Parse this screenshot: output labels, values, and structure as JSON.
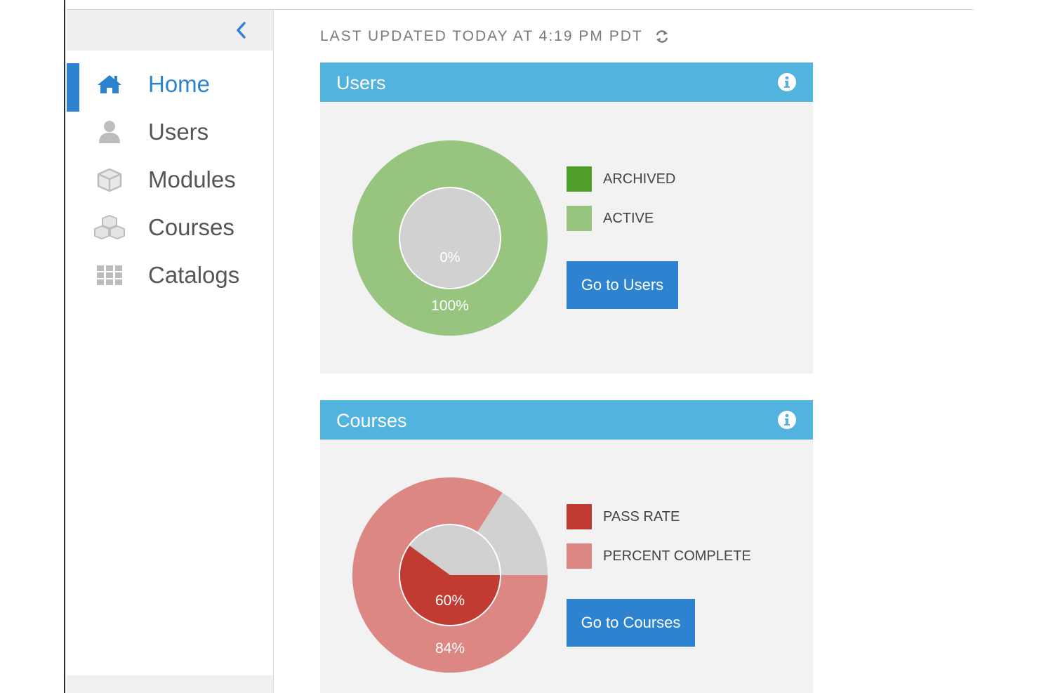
{
  "header": {
    "last_updated": "LAST UPDATED TODAY AT 4:19 PM PDT",
    "refresh_icon": "refresh-icon"
  },
  "sidebar": {
    "collapse_icon": "chevron-left-icon",
    "items": [
      {
        "label": "Home",
        "icon": "home-icon",
        "active": true
      },
      {
        "label": "Users",
        "icon": "user-icon",
        "active": false
      },
      {
        "label": "Modules",
        "icon": "cube-icon",
        "active": false
      },
      {
        "label": "Courses",
        "icon": "cubes-icon",
        "active": false
      },
      {
        "label": "Catalogs",
        "icon": "grid-icon",
        "active": false
      }
    ]
  },
  "colors": {
    "accent": "#2d83d0",
    "card_header": "#52b3de",
    "archived": "#4f9e2a",
    "active": "#97c47e",
    "pass_rate": "#c23b33",
    "percent_complete": "#dc8783",
    "empty": "#d1d1d1"
  },
  "cards": {
    "users": {
      "title": "Users",
      "legend": [
        "ARCHIVED",
        "ACTIVE"
      ],
      "button": "Go to Users",
      "inner_label": "0%",
      "outer_label": "100%"
    },
    "courses": {
      "title": "Courses",
      "legend": [
        "PASS RATE",
        "PERCENT COMPLETE"
      ],
      "button": "Go to Courses",
      "inner_label": "60%",
      "outer_label": "84%"
    }
  },
  "chart_data": [
    {
      "type": "pie",
      "title": "Users",
      "series": [
        {
          "name": "ARCHIVED",
          "values": [
            0
          ]
        },
        {
          "name": "ACTIVE",
          "values": [
            100
          ]
        }
      ],
      "inner_ring": {
        "series": "ARCHIVED",
        "value": 0,
        "label": "0%"
      },
      "outer_ring": {
        "series": "ACTIVE",
        "value": 100,
        "label": "100%"
      }
    },
    {
      "type": "pie",
      "title": "Courses",
      "series": [
        {
          "name": "PASS RATE",
          "values": [
            60
          ]
        },
        {
          "name": "PERCENT COMPLETE",
          "values": [
            84
          ]
        }
      ],
      "inner_ring": {
        "series": "PASS RATE",
        "value": 60,
        "label": "60%"
      },
      "outer_ring": {
        "series": "PERCENT COMPLETE",
        "value": 84,
        "label": "84%"
      }
    }
  ]
}
